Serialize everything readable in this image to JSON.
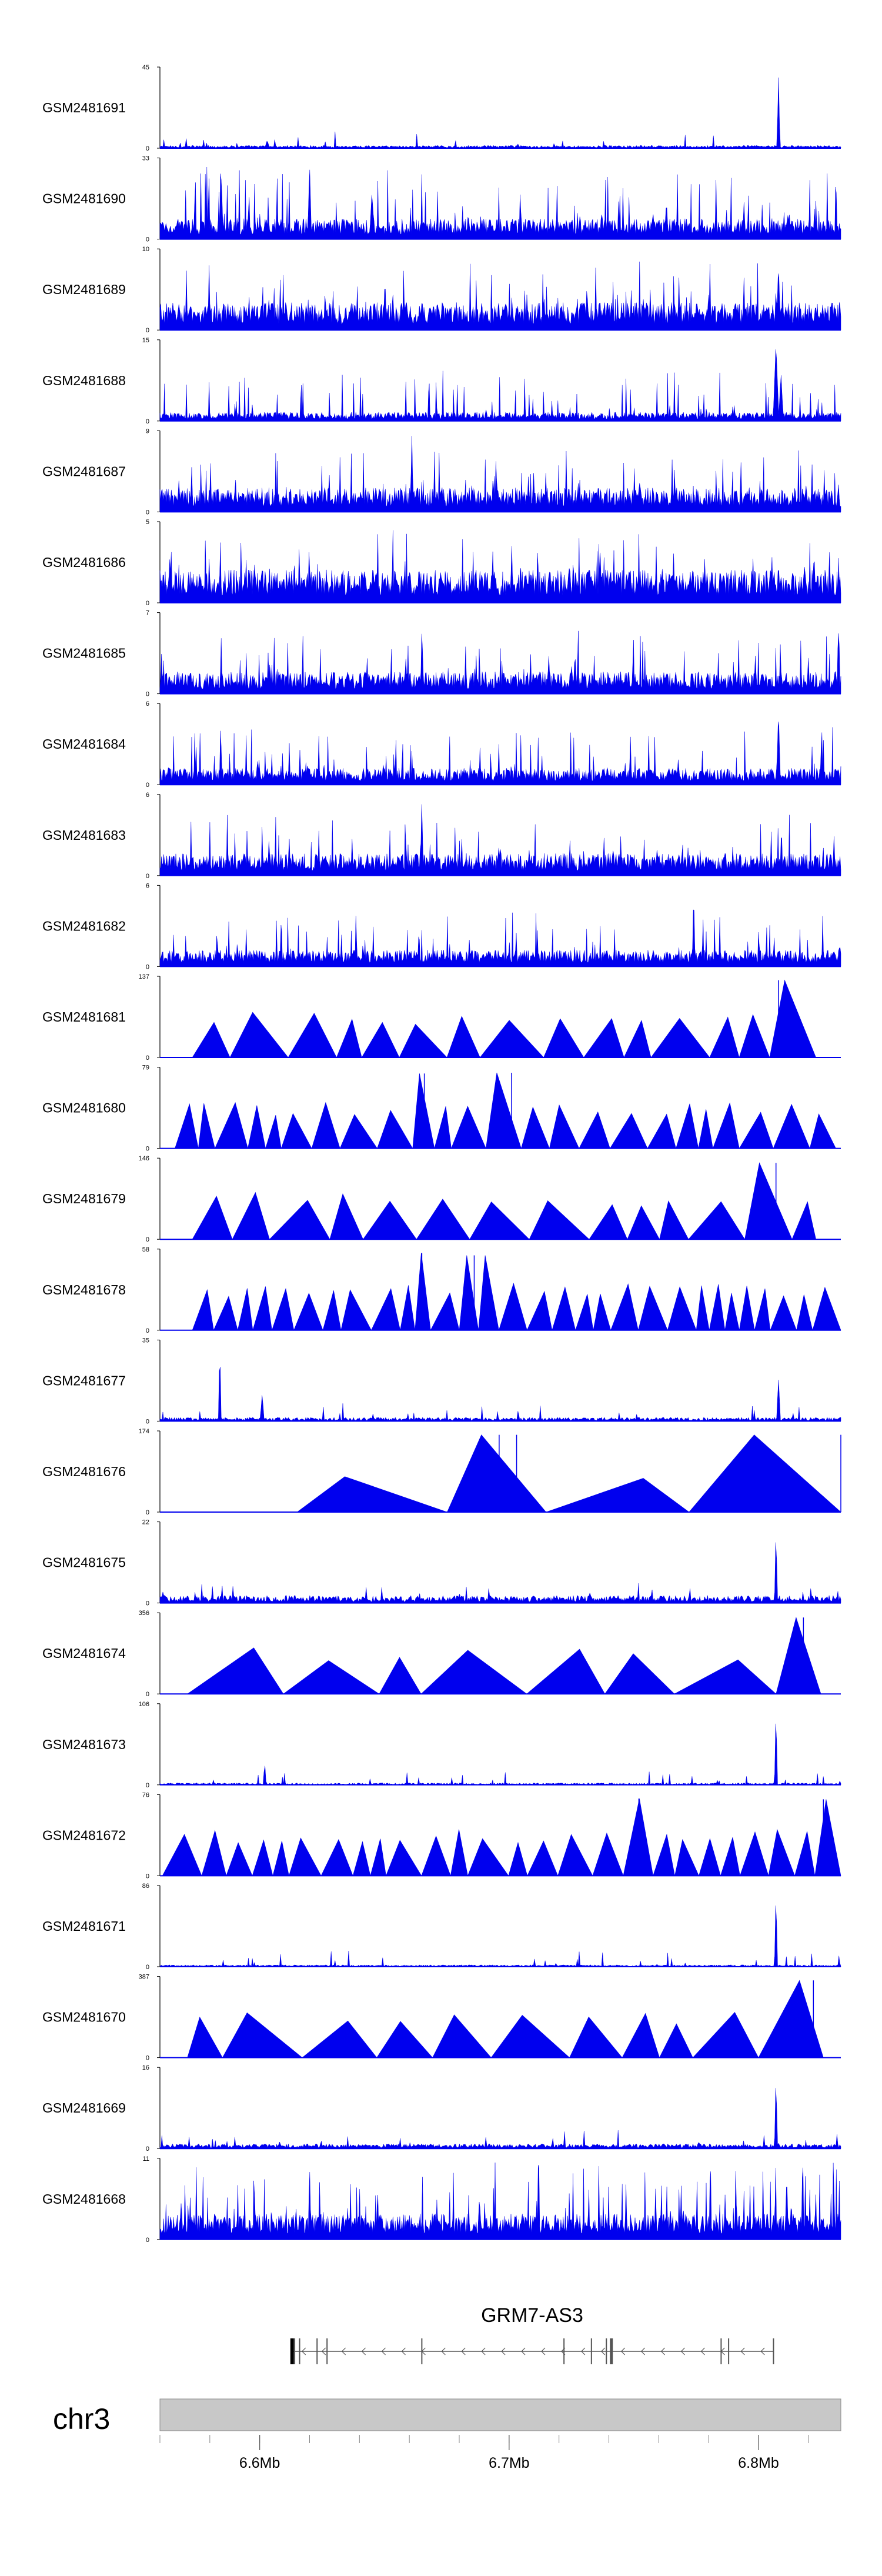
{
  "colors": {
    "signal": "#0000ee",
    "signal_light": "#2a2aff",
    "axis": "#000000",
    "ideogram": "#c8c8c8",
    "ideogram_stroke": "#888888",
    "gene": "#555555"
  },
  "chart_data": {
    "type": "genome-browser-tracks",
    "title": "",
    "x": {
      "chromosome": "chr3",
      "range_mb": [
        6.56,
        6.833
      ],
      "tick_labels": [
        "6.6Mb",
        "6.7Mb",
        "6.8Mb"
      ],
      "tick_values_mb": [
        6.6,
        6.7,
        6.8
      ]
    },
    "tracks": [
      {
        "name": "GSM2481691",
        "ymax": 45,
        "ymin": 0,
        "style": "noise",
        "density": 0.35,
        "base": 0.03,
        "peaks": [
          [
            6.808,
            0.96,
            0.0006
          ],
          [
            6.603,
            0.1,
            0.001
          ]
        ]
      },
      {
        "name": "GSM2481690",
        "ymax": 33,
        "ymin": 0,
        "style": "spiky",
        "density": 0.9,
        "base": 0.2,
        "peaks": [
          [
            6.62,
            0.95,
            0.0008
          ],
          [
            6.645,
            0.6,
            0.001
          ]
        ]
      },
      {
        "name": "GSM2481689",
        "ymax": 10,
        "ymin": 0,
        "style": "dense",
        "density": 1.0,
        "base": 0.25,
        "peaks": [
          [
            6.808,
            0.85,
            0.0008
          ]
        ]
      },
      {
        "name": "GSM2481688",
        "ymax": 15,
        "ymin": 0,
        "style": "dense",
        "density": 0.8,
        "base": 0.08,
        "peaks": [
          [
            6.807,
            0.98,
            0.0012
          ],
          [
            6.809,
            0.6,
            0.001
          ]
        ]
      },
      {
        "name": "GSM2481687",
        "ymax": 9,
        "ymin": 0,
        "style": "dense",
        "density": 1.0,
        "base": 0.22,
        "peaks": [
          [
            6.661,
            0.98,
            0.0006
          ]
        ]
      },
      {
        "name": "GSM2481686",
        "ymax": 5,
        "ymin": 0,
        "style": "dense",
        "density": 1.0,
        "base": 0.3,
        "peaks": []
      },
      {
        "name": "GSM2481685",
        "ymax": 7,
        "ymin": 0,
        "style": "dense",
        "density": 1.0,
        "base": 0.2,
        "peaks": [
          [
            6.832,
            0.9,
            0.0006
          ]
        ]
      },
      {
        "name": "GSM2481684",
        "ymax": 6,
        "ymin": 0,
        "style": "dense",
        "density": 1.0,
        "base": 0.15,
        "peaks": [
          [
            6.808,
            0.95,
            0.0008
          ]
        ]
      },
      {
        "name": "GSM2481683",
        "ymax": 6,
        "ymin": 0,
        "style": "dense",
        "density": 1.0,
        "base": 0.2,
        "peaks": [
          [
            6.665,
            0.98,
            0.0006
          ]
        ]
      },
      {
        "name": "GSM2481682",
        "ymax": 6,
        "ymin": 0,
        "style": "dense",
        "density": 1.0,
        "base": 0.15,
        "peaks": [
          [
            6.774,
            0.96,
            0.0006
          ]
        ]
      },
      {
        "name": "GSM2481681",
        "ymax": 137,
        "ymin": 0,
        "style": "triangles",
        "start": 6.573,
        "end": 6.823,
        "count": 15,
        "tall": [
          [
            6.808,
            0.98
          ]
        ]
      },
      {
        "name": "GSM2481680",
        "ymax": 79,
        "ymin": 0,
        "style": "triangles",
        "start": 6.566,
        "end": 6.831,
        "count": 24,
        "tall": [
          [
            6.666,
            0.95
          ],
          [
            6.701,
            0.96
          ]
        ]
      },
      {
        "name": "GSM2481679",
        "ymax": 146,
        "ymin": 0,
        "style": "triangles",
        "start": 6.573,
        "end": 6.823,
        "count": 14,
        "tall": [
          [
            6.807,
            0.97
          ]
        ]
      },
      {
        "name": "GSM2481678",
        "ymax": 58,
        "ymin": 0,
        "style": "triangles",
        "start": 6.573,
        "end": 6.833,
        "count": 30,
        "tall": [
          [
            6.665,
            0.98
          ],
          [
            6.686,
            0.95
          ]
        ]
      },
      {
        "name": "GSM2481677",
        "ymax": 35,
        "ymin": 0,
        "style": "noise",
        "density": 0.55,
        "base": 0.04,
        "peaks": [
          [
            6.584,
            0.98,
            0.0006
          ],
          [
            6.808,
            0.55,
            0.0008
          ],
          [
            6.601,
            0.35,
            0.0008
          ]
        ]
      },
      {
        "name": "GSM2481676",
        "ymax": 174,
        "ymin": 0,
        "style": "triangles",
        "start": 6.615,
        "end": 6.833,
        "count": 4,
        "tall": [
          [
            6.696,
            0.98
          ],
          [
            6.703,
            0.98
          ],
          [
            6.833,
            0.98
          ]
        ]
      },
      {
        "name": "GSM2481675",
        "ymax": 22,
        "ymin": 0,
        "style": "noise",
        "density": 0.7,
        "base": 0.08,
        "peaks": [
          [
            6.807,
            0.98,
            0.0006
          ]
        ]
      },
      {
        "name": "GSM2481674",
        "ymax": 356,
        "ymin": 0,
        "style": "triangles",
        "start": 6.571,
        "end": 6.825,
        "count": 8,
        "tall": [
          [
            6.818,
            0.97
          ]
        ]
      },
      {
        "name": "GSM2481673",
        "ymax": 106,
        "ymin": 0,
        "style": "noise",
        "density": 0.3,
        "base": 0.02,
        "peaks": [
          [
            6.807,
            0.99,
            0.0006
          ],
          [
            6.602,
            0.3,
            0.0006
          ]
        ]
      },
      {
        "name": "GSM2481672",
        "ymax": 76,
        "ymin": 0,
        "style": "triangles",
        "start": 6.561,
        "end": 6.833,
        "count": 26,
        "tall": [
          [
            6.752,
            0.98
          ],
          [
            6.826,
            0.97
          ]
        ]
      },
      {
        "name": "GSM2481671",
        "ymax": 86,
        "ymin": 0,
        "style": "noise",
        "density": 0.3,
        "base": 0.02,
        "peaks": [
          [
            6.807,
            0.99,
            0.0006
          ]
        ]
      },
      {
        "name": "GSM2481670",
        "ymax": 387,
        "ymin": 0,
        "style": "triangles",
        "start": 6.571,
        "end": 6.826,
        "count": 11,
        "tall": [
          [
            6.822,
            0.98
          ]
        ]
      },
      {
        "name": "GSM2481669",
        "ymax": 16,
        "ymin": 0,
        "style": "noise",
        "density": 0.55,
        "base": 0.05,
        "peaks": [
          [
            6.807,
            0.98,
            0.0006
          ]
        ]
      },
      {
        "name": "GSM2481668",
        "ymax": 11,
        "ymin": 0,
        "style": "spiky",
        "density": 1.0,
        "base": 0.25,
        "peaks": [
          [
            6.62,
            0.95,
            0.0006
          ]
        ]
      }
    ],
    "gene": {
      "name": "GRM7-AS3",
      "start_mb": 6.613,
      "end_mb": 6.806,
      "strand": "-",
      "exons_mb": [
        6.613,
        6.614,
        6.616,
        6.623,
        6.627,
        6.665,
        6.722,
        6.733,
        6.739,
        6.741,
        6.785,
        6.788,
        6.806
      ]
    }
  }
}
